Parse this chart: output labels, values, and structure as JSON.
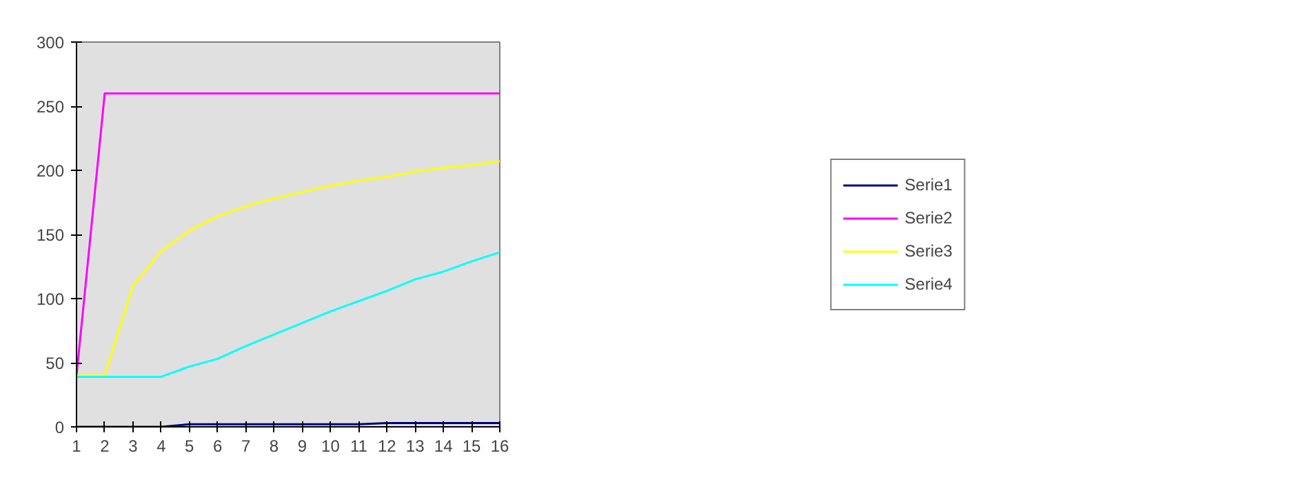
{
  "chart_data": {
    "type": "line",
    "x": [
      1,
      2,
      3,
      4,
      5,
      6,
      7,
      8,
      9,
      10,
      11,
      12,
      13,
      14,
      15,
      16
    ],
    "xlim": [
      1,
      16
    ],
    "xticks": [
      1,
      2,
      3,
      4,
      5,
      6,
      7,
      8,
      9,
      10,
      11,
      12,
      13,
      14,
      15,
      16
    ],
    "ylim": [
      0,
      300
    ],
    "yticks": [
      0,
      50,
      100,
      150,
      200,
      250,
      300
    ],
    "grid": false,
    "legend": "right",
    "marker": "none",
    "line_style": "solid",
    "series": [
      {
        "name": "Serie1",
        "color": "#000080",
        "values": [
          0,
          0,
          0,
          0,
          2,
          2,
          2,
          2,
          2,
          2,
          2,
          3,
          3,
          3,
          3,
          3
        ]
      },
      {
        "name": "Serie2",
        "color": "#ff00ff",
        "values": [
          40,
          260,
          260,
          260,
          260,
          260,
          260,
          260,
          260,
          260,
          260,
          260,
          260,
          260,
          260,
          260
        ]
      },
      {
        "name": "Serie3",
        "color": "#ffff00",
        "values": [
          40,
          40,
          110,
          137,
          153,
          164,
          172,
          178,
          183,
          188,
          192,
          195,
          199,
          202,
          204,
          207
        ]
      },
      {
        "name": "Serie4",
        "color": "#00ffff",
        "values": [
          39,
          39,
          39,
          39,
          47,
          53,
          63,
          72,
          81,
          90,
          98,
          106,
          115,
          121,
          129,
          136
        ]
      }
    ]
  }
}
